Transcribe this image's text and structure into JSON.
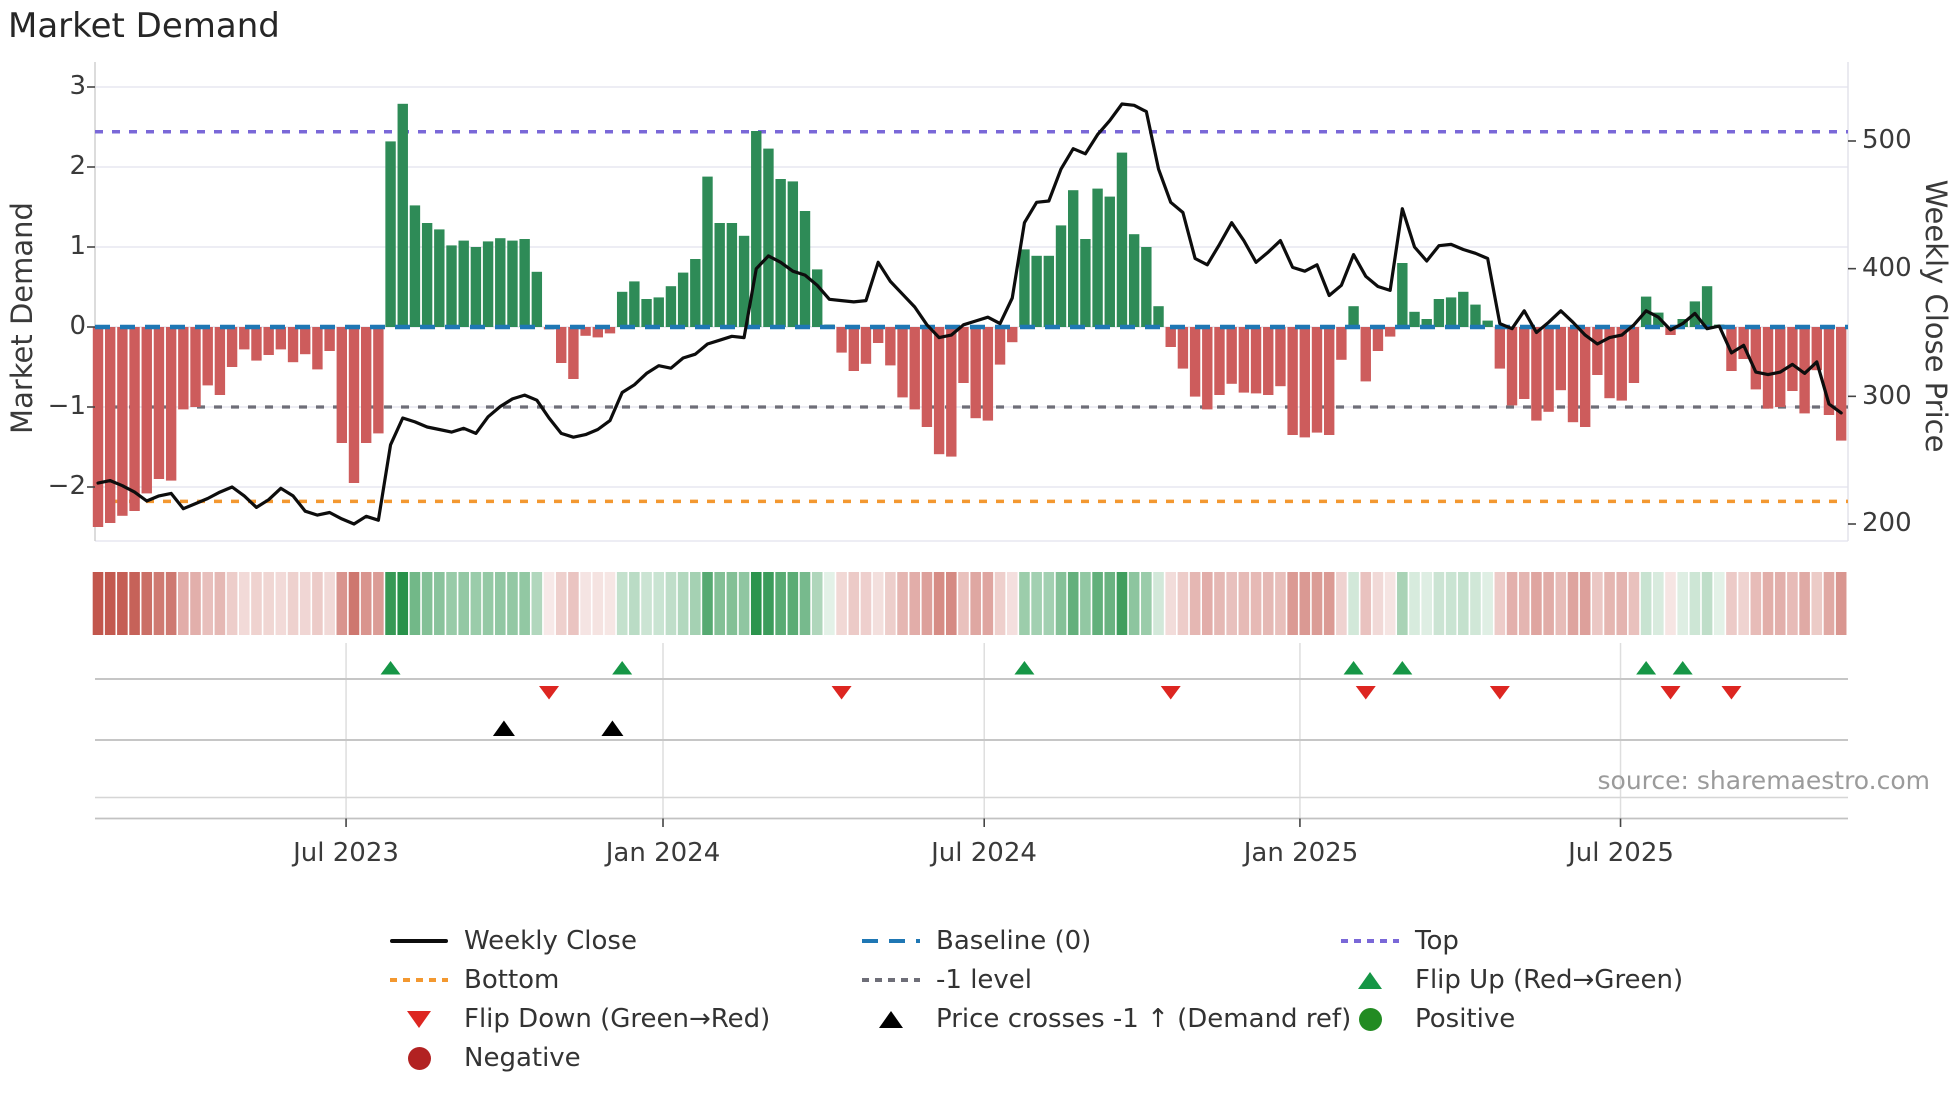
{
  "title": "Market Demand",
  "source": "source: sharemaestro.com",
  "axes": {
    "left_label": "Market Demand",
    "right_label": "Weekly Close Price",
    "left_ticks": [
      "3",
      "2",
      "1",
      "0",
      "−1",
      "−2"
    ],
    "right_ticks": [
      "500",
      "400",
      "300",
      "200"
    ]
  },
  "legend": {
    "col1": [
      {
        "marker": "solid-black-line",
        "label": "Weekly Close"
      },
      {
        "marker": "dotted-orange-line",
        "label": "Bottom"
      },
      {
        "marker": "red-down-triangle",
        "label": "Flip Down (Green→Red)"
      },
      {
        "marker": "dark-red-circle",
        "label": "Negative"
      }
    ],
    "col2": [
      {
        "marker": "dashed-blue-line",
        "label": "Baseline (0)"
      },
      {
        "marker": "dotted-gray-line",
        "label": "-1 level"
      },
      {
        "marker": "black-up-triangle",
        "label": "Price crosses -1 ↑ (Demand ref)"
      }
    ],
    "col3": [
      {
        "marker": "dotted-purple-line",
        "label": "Top"
      },
      {
        "marker": "green-up-triangle",
        "label": "Flip Up (Red→Green)"
      },
      {
        "marker": "green-circle",
        "label": "Positive"
      }
    ]
  },
  "colors": {
    "bar_positive": "#2e8b57",
    "bar_negative": "#cd5c5c",
    "price_line": "#0d0d0d",
    "baseline": "#1f77b4",
    "top_level": "#7a68d8",
    "bottom_level": "#f39830",
    "minus_one_level": "#6e6e78",
    "flip_up": "#169646",
    "flip_down": "#dd2621",
    "price_cross": "#000000",
    "negative_dot": "#b22222",
    "positive_dot": "#228b22",
    "gridline": "#e7e7f0"
  },
  "chart_data": {
    "type": "bar+line",
    "title": "Market Demand",
    "ylabel_left": "Market Demand",
    "ylabel_right": "Weekly Close Price",
    "x_unit": "week",
    "weeks": 144,
    "ylim_left": [
      -2.66,
      3.24
    ],
    "left_axis_ticks": [
      3,
      2,
      1,
      0,
      -1,
      -2
    ],
    "right_axis_ticks": [
      500,
      400,
      300,
      200
    ],
    "levels": {
      "baseline": 0,
      "top": 2.44,
      "bottom": -2.18,
      "minus_one": -1
    },
    "x_ticks": [
      {
        "label": "Jul 2023",
        "week": 20.35
      },
      {
        "label": "Jan 2024",
        "week": 46.35
      },
      {
        "label": "Jul 2024",
        "week": 72.7
      },
      {
        "label": "Jan 2025",
        "week": 98.6
      },
      {
        "label": "Jul 2025",
        "week": 124.9
      }
    ],
    "demand": [
      -2.5,
      -2.45,
      -2.36,
      -2.3,
      -2.08,
      -1.9,
      -1.92,
      -1.03,
      -1.0,
      -0.73,
      -0.85,
      -0.5,
      -0.28,
      -0.42,
      -0.35,
      -0.28,
      -0.44,
      -0.34,
      -0.53,
      -0.3,
      -1.45,
      -1.95,
      -1.45,
      -1.33,
      2.32,
      2.79,
      1.52,
      1.3,
      1.22,
      1.02,
      1.08,
      1.0,
      1.07,
      1.11,
      1.08,
      1.1,
      0.69,
      -0.03,
      -0.45,
      -0.65,
      -0.11,
      -0.13,
      -0.08,
      0.44,
      0.57,
      0.35,
      0.37,
      0.51,
      0.68,
      0.85,
      1.88,
      1.3,
      1.3,
      1.14,
      2.45,
      2.23,
      1.85,
      1.82,
      1.45,
      0.72,
      0.03,
      -0.32,
      -0.55,
      -0.46,
      -0.2,
      -0.48,
      -0.88,
      -1.03,
      -1.25,
      -1.59,
      -1.62,
      -0.7,
      -1.14,
      -1.17,
      -0.47,
      -0.19,
      0.97,
      0.89,
      0.89,
      1.27,
      1.71,
      1.1,
      1.73,
      1.63,
      2.18,
      1.16,
      1.0,
      0.26,
      -0.25,
      -0.52,
      -0.87,
      -1.03,
      -0.85,
      -0.71,
      -0.82,
      -0.83,
      -0.85,
      -0.74,
      -1.35,
      -1.38,
      -1.32,
      -1.35,
      -0.41,
      0.26,
      -0.68,
      -0.3,
      -0.12,
      0.8,
      0.19,
      0.1,
      0.35,
      0.37,
      0.44,
      0.28,
      0.08,
      -0.52,
      -0.98,
      -0.9,
      -1.17,
      -1.06,
      -0.79,
      -1.19,
      -1.25,
      -0.6,
      -0.89,
      -0.92,
      -0.7,
      0.38,
      0.18,
      -0.1,
      0.1,
      0.32,
      0.51,
      0.03,
      -0.55,
      -0.4,
      -0.78,
      -1.02,
      -1.0,
      -0.8,
      -1.08,
      -0.54,
      -1.1,
      -1.42
    ],
    "price": [
      232,
      234,
      230,
      225,
      218,
      222,
      224,
      212,
      216,
      220,
      225,
      229,
      222,
      213,
      219,
      228,
      222,
      210,
      207,
      209,
      204,
      200,
      206,
      203,
      262,
      283,
      280,
      276,
      274,
      272,
      275,
      271,
      284,
      292,
      298,
      301,
      297,
      283,
      271,
      268,
      270,
      274,
      281,
      303,
      309,
      318,
      324,
      322,
      330,
      333,
      341,
      344,
      347,
      346,
      400,
      410,
      405,
      398,
      395,
      387,
      376,
      375,
      374,
      375,
      405,
      390,
      380,
      370,
      356,
      346,
      348,
      356,
      359,
      362,
      357,
      377,
      436,
      452,
      453,
      478,
      494,
      490,
      505,
      516,
      529,
      528,
      523,
      478,
      452,
      444,
      408,
      403,
      419,
      436,
      422,
      405,
      413,
      422,
      401,
      398,
      403,
      379,
      387,
      411,
      394,
      386,
      383,
      447,
      417,
      406,
      418,
      419,
      415,
      412,
      408,
      357,
      353,
      367,
      350,
      358,
      367,
      358,
      348,
      341,
      346,
      348,
      356,
      367,
      362,
      352,
      357,
      365,
      353,
      355,
      334,
      340,
      319,
      317,
      319,
      325,
      318,
      327,
      294,
      287
    ],
    "markers": {
      "flip_up_weeks": [
        24,
        43,
        76,
        103,
        107,
        127,
        130
      ],
      "flip_down_weeks": [
        37,
        61,
        88,
        104,
        115,
        129,
        134
      ],
      "price_cross_minus1_weeks": [
        33.3,
        42.2
      ]
    },
    "heatmap": "row of 144 weekly cells below main chart; color = sign/magnitude of demand (green positive, red negative)"
  }
}
